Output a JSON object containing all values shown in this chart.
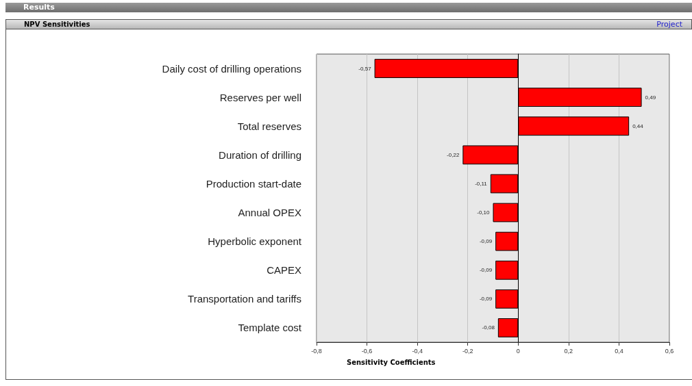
{
  "chart_data": {
    "type": "bar",
    "orientation": "horizontal",
    "title": "Results",
    "subtitle": "NPV Sensitivities",
    "annotations": [
      "Project"
    ],
    "xlabel": "Sensitivity Coefficients",
    "categories": [
      "Daily cost of drilling operations",
      "Reserves per well",
      "Total reserves",
      "Duration of drilling",
      "Production start-date",
      "Annual OPEX",
      "Hyperbolic exponent",
      "CAPEX",
      "Transportation and tariffs",
      "Template cost"
    ],
    "values": [
      -0.57,
      0.49,
      0.44,
      -0.22,
      -0.11,
      -0.1,
      -0.09,
      -0.09,
      -0.09,
      -0.08
    ],
    "value_labels": [
      "-0,57",
      "0,49",
      "0,44",
      "-0,22",
      "-0,11",
      "-0,10",
      "-0,09",
      "-0,09",
      "-0,09",
      "-0,08"
    ],
    "color": "#ff0000",
    "xlim": [
      -0.8,
      0.6
    ],
    "xticks": [
      {
        "value": -0.8,
        "label": "-0,8"
      },
      {
        "value": -0.6,
        "label": "-0,6"
      },
      {
        "value": -0.4,
        "label": "-0,4"
      },
      {
        "value": -0.2,
        "label": "-0,2"
      },
      {
        "value": 0,
        "label": "0"
      },
      {
        "value": 0.2,
        "label": "0,2"
      },
      {
        "value": 0.4,
        "label": "0,4"
      },
      {
        "value": 0.6,
        "label": "0,6"
      }
    ],
    "grid": "x"
  }
}
